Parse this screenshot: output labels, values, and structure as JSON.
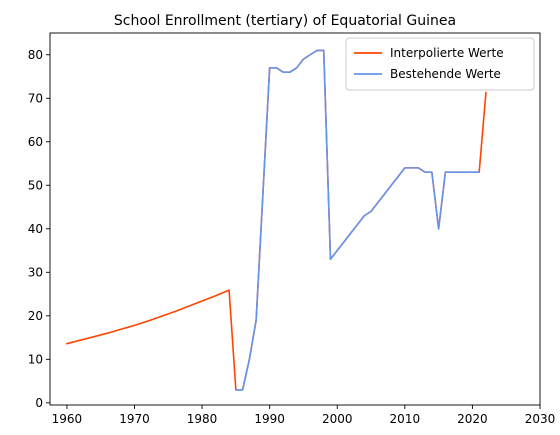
{
  "chart_data": {
    "type": "line",
    "title": "School Enrollment (tertiary) of Equatorial Guinea",
    "xlabel": "",
    "ylabel": "",
    "xlim": [
      1957.5,
      2030
    ],
    "ylim": [
      -0.5,
      85
    ],
    "xticks": [
      1960,
      1970,
      1980,
      1990,
      2000,
      2010,
      2020,
      2030
    ],
    "yticks": [
      0,
      10,
      20,
      30,
      40,
      50,
      60,
      70,
      80
    ],
    "grid": false,
    "legend_position": "upper right",
    "series": [
      {
        "name": "Interpolierte Werte",
        "color": "#ff4500",
        "x": [
          1960,
          1962,
          1964,
          1966,
          1968,
          1970,
          1972,
          1974,
          1976,
          1978,
          1980,
          1982,
          1984,
          1985,
          1986,
          1987,
          1988,
          1989,
          1990,
          1991,
          1992,
          1993,
          1994,
          1995,
          1996,
          1997,
          1998,
          1999,
          2000,
          2001,
          2002,
          2003,
          2004,
          2005,
          2006,
          2007,
          2008,
          2009,
          2010,
          2011,
          2012,
          2013,
          2014,
          2015,
          2016,
          2017,
          2018,
          2019,
          2020,
          2021,
          2022
        ],
        "y": [
          13.6,
          14.4,
          15.2,
          16.0,
          16.9,
          17.8,
          18.8,
          19.9,
          21.0,
          22.2,
          23.4,
          24.6,
          25.9,
          3.0,
          3.0,
          10.0,
          19.0,
          48.0,
          77.0,
          77.0,
          76.0,
          76.0,
          77.0,
          79.0,
          80.0,
          81.0,
          81.0,
          33.0,
          35.0,
          37.0,
          39.0,
          41.0,
          43.0,
          44.0,
          46.0,
          48.0,
          50.0,
          52.0,
          54.0,
          54.0,
          54.0,
          53.0,
          53.0,
          40.0,
          53.0,
          53.0,
          53.0,
          53.0,
          53.0,
          53.0,
          71.3
        ]
      },
      {
        "name": "Bestehende Werte",
        "color": "#6495ed",
        "x": [
          1985,
          1986,
          1987,
          1988,
          1989,
          1990,
          1991,
          1992,
          1993,
          1994,
          1995,
          1996,
          1997,
          1998,
          1999,
          2000,
          2001,
          2002,
          2003,
          2004,
          2005,
          2006,
          2007,
          2008,
          2009,
          2010,
          2011,
          2012,
          2013,
          2014,
          2015,
          2016,
          2017,
          2018,
          2019,
          2020,
          2021
        ],
        "y": [
          3.0,
          3.0,
          10.0,
          19.0,
          48.0,
          77.0,
          77.0,
          76.0,
          76.0,
          77.0,
          79.0,
          80.0,
          81.0,
          81.0,
          33.0,
          35.0,
          37.0,
          39.0,
          41.0,
          43.0,
          44.0,
          46.0,
          48.0,
          50.0,
          52.0,
          54.0,
          54.0,
          54.0,
          53.0,
          53.0,
          40.0,
          53.0,
          53.0,
          53.0,
          53.0,
          53.0,
          53.0
        ]
      }
    ]
  }
}
